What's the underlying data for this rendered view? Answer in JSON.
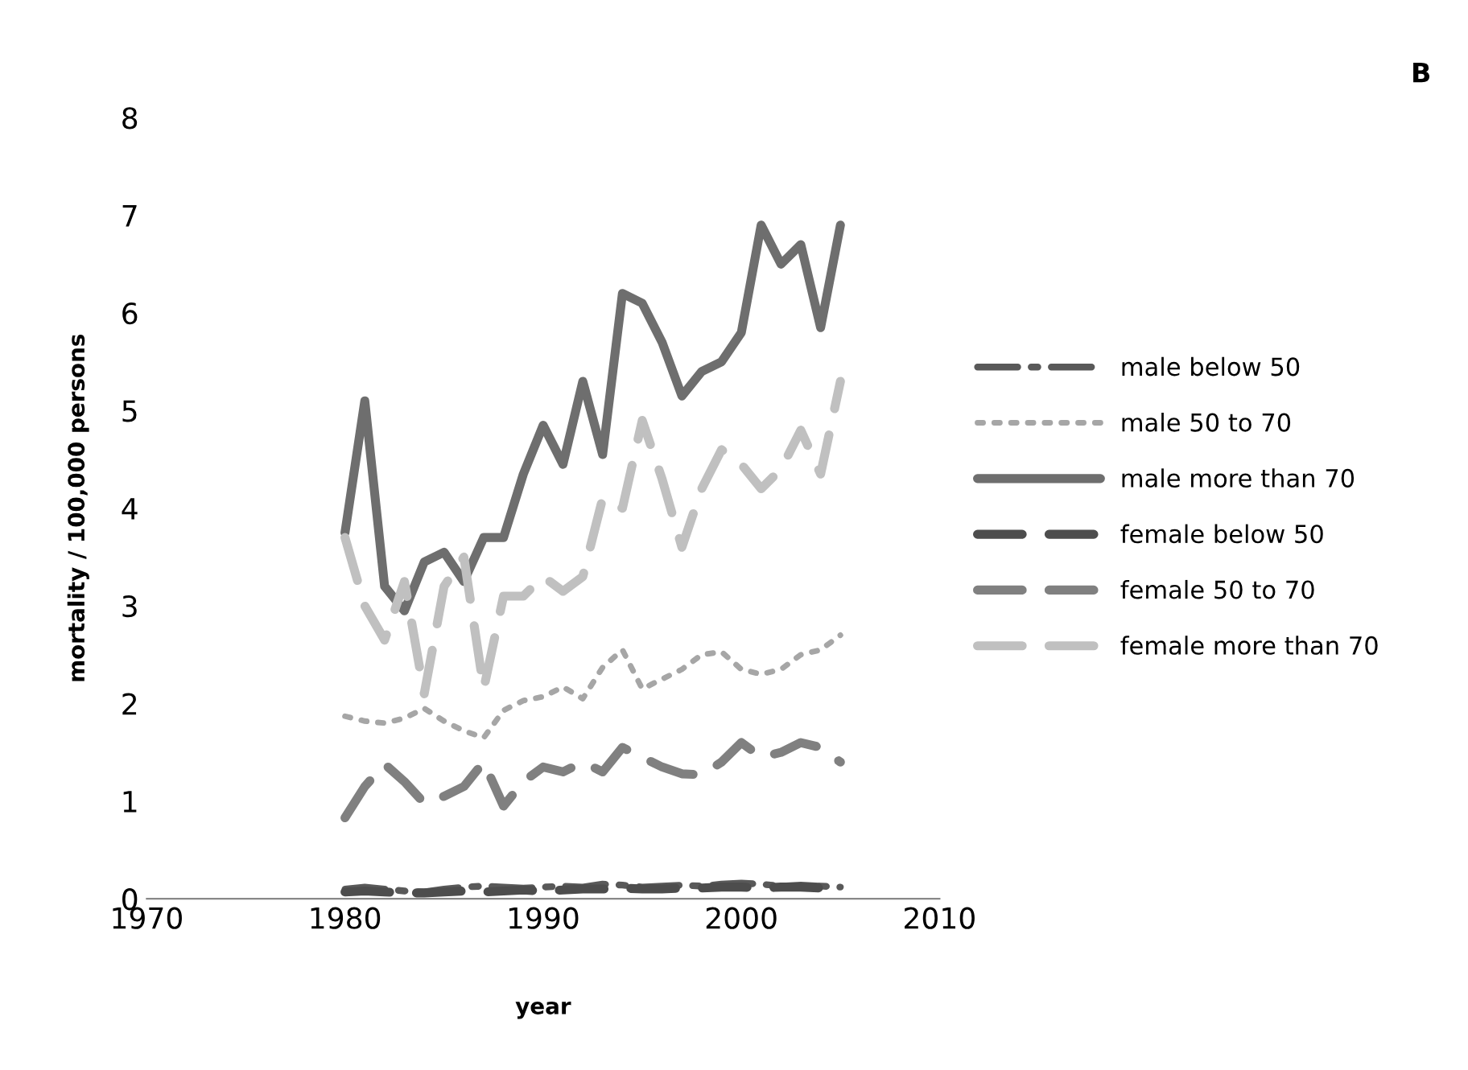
{
  "chart_data": {
    "type": "line",
    "title": "B",
    "xlabel": "year",
    "ylabel": "mortality / 100,000 persons",
    "x": [
      1980,
      1981,
      1982,
      1983,
      1984,
      1985,
      1986,
      1987,
      1988,
      1989,
      1990,
      1991,
      1992,
      1993,
      1994,
      1995,
      1996,
      1997,
      1998,
      1999,
      2000,
      2001,
      2002,
      2003,
      2004,
      2005
    ],
    "xlim": [
      1970,
      2010
    ],
    "xticks": [
      1970,
      1980,
      1990,
      2000,
      2010
    ],
    "ylim": [
      0,
      8
    ],
    "yticks": [
      0,
      1,
      2,
      3,
      4,
      5,
      6,
      7,
      8
    ],
    "grid": false,
    "legend": "right",
    "marker": "none",
    "series": [
      {
        "name": "male below 50",
        "color": "#595959",
        "line_style": "dashdot",
        "values": [
          0.1,
          0.12,
          0.1,
          0.08,
          0.07,
          0.1,
          0.12,
          0.13,
          0.12,
          0.11,
          0.12,
          0.13,
          0.12,
          0.15,
          0.14,
          0.12,
          0.13,
          0.14,
          0.13,
          0.15,
          0.16,
          0.15,
          0.13,
          0.14,
          0.13,
          0.12
        ]
      },
      {
        "name": "male 50 to 70",
        "color": "#a6a6a6",
        "line_style": "dotted",
        "values": [
          1.87,
          1.82,
          1.8,
          1.85,
          1.95,
          1.82,
          1.72,
          1.65,
          1.93,
          2.03,
          2.07,
          2.17,
          2.05,
          2.37,
          2.55,
          2.15,
          2.25,
          2.35,
          2.5,
          2.53,
          2.35,
          2.3,
          2.35,
          2.5,
          2.55,
          2.7
        ]
      },
      {
        "name": "male more than 70",
        "color": "#6e6e6e",
        "line_style": "solid",
        "values": [
          3.75,
          5.1,
          3.2,
          2.95,
          3.45,
          3.55,
          3.25,
          3.7,
          3.7,
          4.35,
          4.85,
          4.45,
          5.3,
          4.55,
          6.2,
          6.1,
          5.7,
          5.15,
          5.4,
          5.5,
          5.8,
          6.9,
          6.5,
          6.7,
          5.85,
          6.9
        ]
      },
      {
        "name": "female below 50",
        "color": "#4d4d4d",
        "line_style": "dashed",
        "values": [
          0.07,
          0.08,
          0.07,
          0.06,
          0.06,
          0.07,
          0.08,
          0.07,
          0.08,
          0.09,
          0.08,
          0.09,
          0.1,
          0.1,
          0.11,
          0.1,
          0.1,
          0.11,
          0.11,
          0.12,
          0.12,
          0.11,
          0.12,
          0.12,
          0.11,
          0.11
        ]
      },
      {
        "name": "female 50 to 70",
        "color": "#808080",
        "line_style": "dashed",
        "values": [
          0.83,
          1.15,
          1.38,
          1.2,
          0.98,
          1.05,
          1.15,
          1.4,
          0.95,
          1.2,
          1.35,
          1.3,
          1.4,
          1.3,
          1.55,
          1.45,
          1.35,
          1.28,
          1.27,
          1.4,
          1.6,
          1.45,
          1.5,
          1.6,
          1.55,
          1.4
        ]
      },
      {
        "name": "female more than 70",
        "color": "#c0c0c0",
        "line_style": "dashed",
        "values": [
          3.7,
          3.0,
          2.65,
          3.25,
          2.1,
          3.2,
          3.5,
          2.15,
          3.1,
          3.1,
          3.3,
          3.15,
          3.3,
          4.1,
          4.0,
          4.9,
          4.3,
          3.6,
          4.2,
          4.6,
          4.45,
          4.2,
          4.4,
          4.8,
          4.35,
          5.3
        ]
      }
    ]
  }
}
